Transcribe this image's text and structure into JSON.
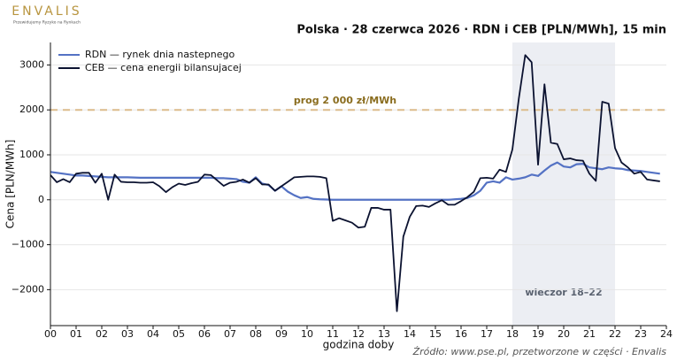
{
  "brand": {
    "name": "ENVALIS",
    "tagline": "Przewidujemy Ryzyko na Rynkach"
  },
  "chart_data": {
    "type": "line",
    "title": "Polska · 28 czerwca 2026 · RDN i CEB [PLN/MWh], 15 min",
    "x_label": "godzina doby",
    "y_label": "Cena [PLN/MWh]",
    "source": "Źródło: www.pse.pl, przetworzone w części · Envalis",
    "legend": "upper left",
    "grid": true,
    "xlim": [
      0,
      24
    ],
    "ylim": [
      -2800,
      3500
    ],
    "xticks": [
      {
        "value": 0,
        "label": "00"
      },
      {
        "value": 1,
        "label": "01"
      },
      {
        "value": 2,
        "label": "02"
      },
      {
        "value": 3,
        "label": "03"
      },
      {
        "value": 4,
        "label": "04"
      },
      {
        "value": 5,
        "label": "05"
      },
      {
        "value": 6,
        "label": "06"
      },
      {
        "value": 7,
        "label": "07"
      },
      {
        "value": 8,
        "label": "08"
      },
      {
        "value": 9,
        "label": "09"
      },
      10,
      11,
      12,
      13,
      14,
      15,
      16,
      17,
      18,
      19,
      20,
      21,
      22,
      23,
      24
    ],
    "yticks": [
      {
        "value": -2000,
        "label": "−2000"
      },
      {
        "value": -1000,
        "label": "−1000"
      },
      0,
      1000,
      2000,
      3000
    ],
    "shade": {
      "from": 18,
      "to": 22,
      "label": "wieczor 18–22",
      "color": "#eceef3"
    },
    "threshold": {
      "value": 2000,
      "label": "prog 2 000 zł/MWh",
      "color": "#dcbc8c"
    },
    "x": [
      0,
      0.25,
      0.5,
      0.75,
      1,
      1.25,
      1.5,
      1.75,
      2,
      2.25,
      2.5,
      2.75,
      3,
      3.25,
      3.5,
      3.75,
      4,
      4.25,
      4.5,
      4.75,
      5,
      5.25,
      5.5,
      5.75,
      6,
      6.25,
      6.5,
      6.75,
      7,
      7.25,
      7.5,
      7.75,
      8,
      8.25,
      8.5,
      8.75,
      9,
      9.25,
      9.5,
      9.75,
      10,
      10.25,
      10.5,
      10.75,
      11,
      11.25,
      11.5,
      11.75,
      12,
      12.25,
      12.5,
      12.75,
      13,
      13.25,
      13.5,
      13.75,
      14,
      14.25,
      14.5,
      14.75,
      15,
      15.25,
      15.5,
      15.75,
      16,
      16.25,
      16.5,
      16.75,
      17,
      17.25,
      17.5,
      17.75,
      18,
      18.25,
      18.5,
      18.75,
      19,
      19.25,
      19.5,
      19.75,
      20,
      20.25,
      20.5,
      20.75,
      21,
      21.25,
      21.5,
      21.75,
      22,
      22.25,
      22.5,
      22.75,
      23,
      23.25,
      23.5,
      23.75
    ],
    "series": [
      {
        "name": "RDN — rynek dnia nastepnego",
        "color": "#5472c4",
        "values": [
          620,
          600,
          580,
          560,
          540,
          540,
          530,
          520,
          510,
          500,
          500,
          500,
          500,
          495,
          490,
          490,
          490,
          490,
          490,
          490,
          490,
          490,
          490,
          490,
          490,
          490,
          480,
          480,
          470,
          460,
          400,
          380,
          500,
          360,
          330,
          200,
          300,
          180,
          100,
          40,
          60,
          20,
          10,
          5,
          0,
          0,
          0,
          0,
          0,
          0,
          0,
          0,
          0,
          0,
          0,
          0,
          0,
          0,
          0,
          0,
          0,
          0,
          0,
          10,
          20,
          40,
          100,
          200,
          380,
          410,
          380,
          500,
          450,
          470,
          500,
          560,
          530,
          650,
          760,
          830,
          740,
          720,
          790,
          800,
          720,
          700,
          680,
          720,
          700,
          690,
          660,
          650,
          640,
          620,
          600,
          580
        ]
      },
      {
        "name": "CEB — cena energii bilansujacej",
        "color": "#0b1230",
        "values": [
          550,
          390,
          460,
          390,
          580,
          600,
          600,
          380,
          580,
          0,
          560,
          400,
          390,
          390,
          380,
          380,
          390,
          300,
          170,
          280,
          360,
          330,
          370,
          400,
          560,
          550,
          430,
          310,
          380,
          400,
          450,
          380,
          480,
          340,
          340,
          200,
          300,
          400,
          500,
          510,
          520,
          520,
          510,
          480,
          -470,
          -410,
          -460,
          -510,
          -620,
          -600,
          -180,
          -180,
          -220,
          -220,
          -2480,
          -820,
          -380,
          -140,
          -130,
          -160,
          -80,
          -10,
          -110,
          -110,
          -30,
          60,
          180,
          480,
          490,
          470,
          670,
          620,
          1120,
          2250,
          3220,
          3060,
          780,
          2570,
          1270,
          1240,
          900,
          920,
          880,
          870,
          580,
          420,
          2180,
          2140,
          1150,
          830,
          720,
          580,
          620,
          450,
          430,
          410
        ]
      }
    ]
  }
}
